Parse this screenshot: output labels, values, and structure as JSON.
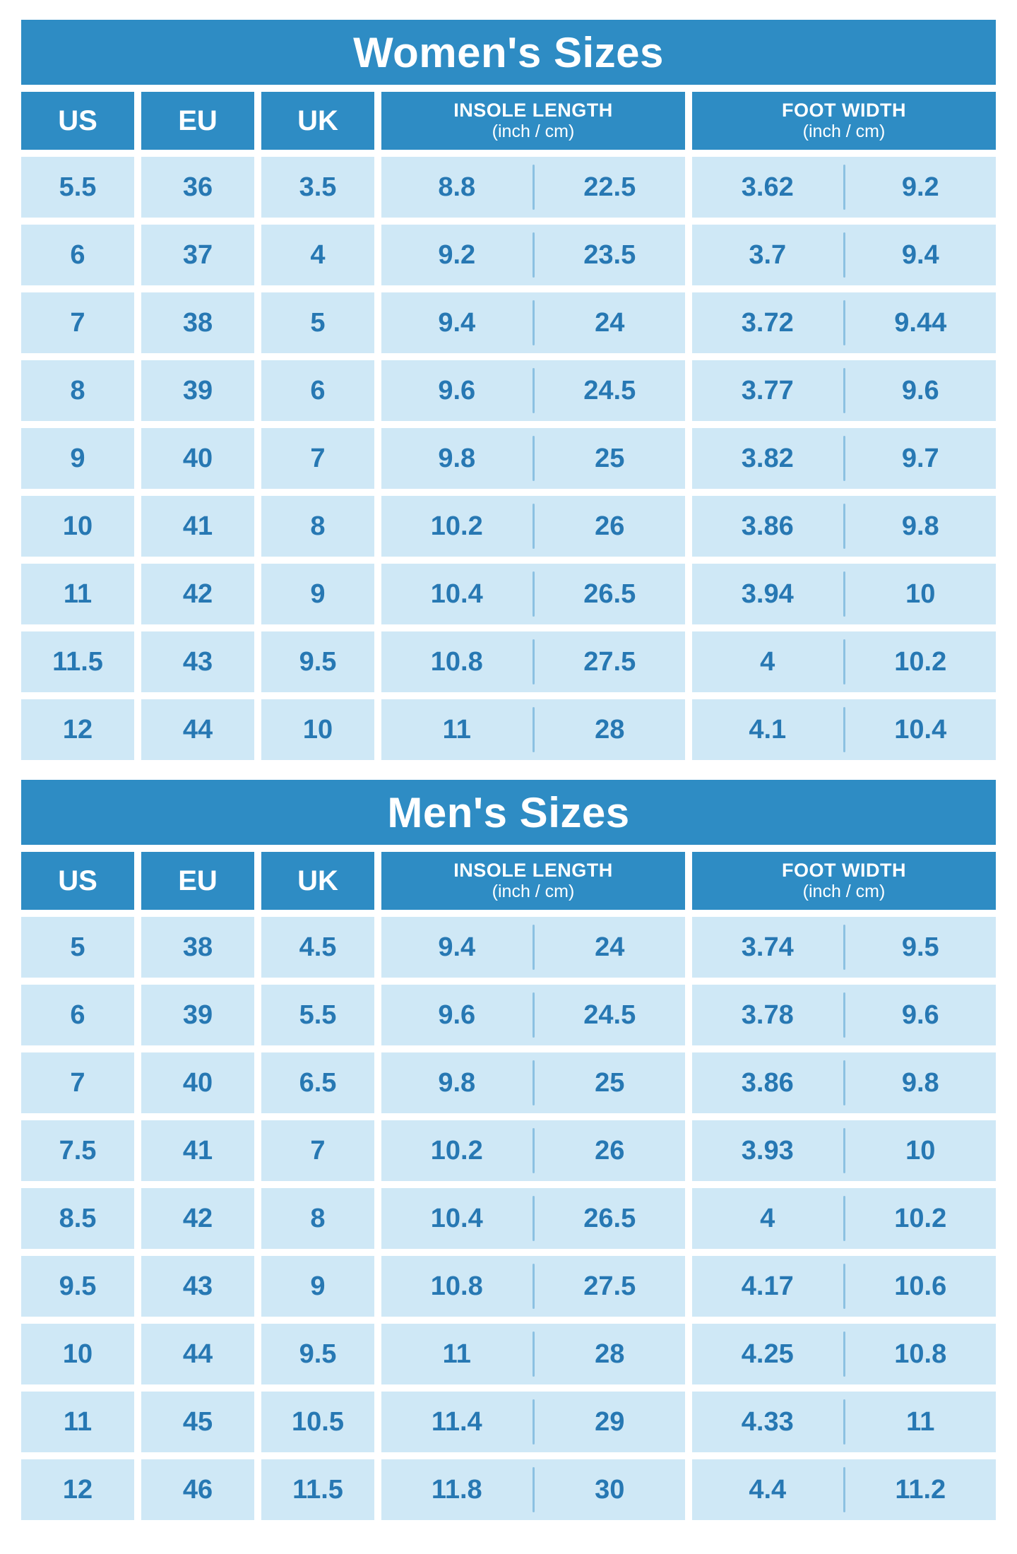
{
  "colors": {
    "header_bg": "#2e8cc4",
    "cell_bg": "#cfe8f6",
    "cell_text": "#2778b3",
    "divider": "#8cc1e2"
  },
  "chart_data": [
    {
      "type": "table",
      "title": "Women's Sizes",
      "col_groups": {
        "us": "US",
        "eu": "EU",
        "uk": "UK",
        "insole_label": "INSOLE LENGTH",
        "insole_sub": "(inch / cm)",
        "width_label": "FOOT WIDTH",
        "width_sub": "(inch / cm)"
      },
      "columns": [
        "US",
        "EU",
        "UK",
        "Insole length (inch)",
        "Insole length (cm)",
        "Foot width (inch)",
        "Foot width (cm)"
      ],
      "rows": [
        [
          "5.5",
          "36",
          "3.5",
          "8.8",
          "22.5",
          "3.62",
          "9.2"
        ],
        [
          "6",
          "37",
          "4",
          "9.2",
          "23.5",
          "3.7",
          "9.4"
        ],
        [
          "7",
          "38",
          "5",
          "9.4",
          "24",
          "3.72",
          "9.44"
        ],
        [
          "8",
          "39",
          "6",
          "9.6",
          "24.5",
          "3.77",
          "9.6"
        ],
        [
          "9",
          "40",
          "7",
          "9.8",
          "25",
          "3.82",
          "9.7"
        ],
        [
          "10",
          "41",
          "8",
          "10.2",
          "26",
          "3.86",
          "9.8"
        ],
        [
          "11",
          "42",
          "9",
          "10.4",
          "26.5",
          "3.94",
          "10"
        ],
        [
          "11.5",
          "43",
          "9.5",
          "10.8",
          "27.5",
          "4",
          "10.2"
        ],
        [
          "12",
          "44",
          "10",
          "11",
          "28",
          "4.1",
          "10.4"
        ]
      ]
    },
    {
      "type": "table",
      "title": "Men's Sizes",
      "col_groups": {
        "us": "US",
        "eu": "EU",
        "uk": "UK",
        "insole_label": "INSOLE LENGTH",
        "insole_sub": "(inch / cm)",
        "width_label": "FOOT WIDTH",
        "width_sub": "(inch / cm)"
      },
      "columns": [
        "US",
        "EU",
        "UK",
        "Insole length (inch)",
        "Insole length (cm)",
        "Foot width (inch)",
        "Foot width (cm)"
      ],
      "rows": [
        [
          "5",
          "38",
          "4.5",
          "9.4",
          "24",
          "3.74",
          "9.5"
        ],
        [
          "6",
          "39",
          "5.5",
          "9.6",
          "24.5",
          "3.78",
          "9.6"
        ],
        [
          "7",
          "40",
          "6.5",
          "9.8",
          "25",
          "3.86",
          "9.8"
        ],
        [
          "7.5",
          "41",
          "7",
          "10.2",
          "26",
          "3.93",
          "10"
        ],
        [
          "8.5",
          "42",
          "8",
          "10.4",
          "26.5",
          "4",
          "10.2"
        ],
        [
          "9.5",
          "43",
          "9",
          "10.8",
          "27.5",
          "4.17",
          "10.6"
        ],
        [
          "10",
          "44",
          "9.5",
          "11",
          "28",
          "4.25",
          "10.8"
        ],
        [
          "11",
          "45",
          "10.5",
          "11.4",
          "29",
          "4.33",
          "11"
        ],
        [
          "12",
          "46",
          "11.5",
          "11.8",
          "30",
          "4.4",
          "11.2"
        ]
      ]
    }
  ]
}
